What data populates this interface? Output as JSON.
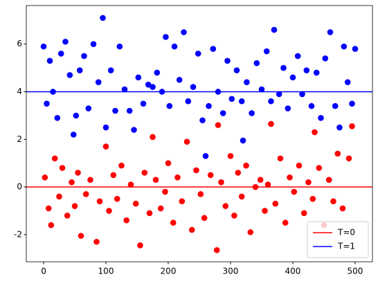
{
  "chart_data": {
    "type": "scatter",
    "series": [
      {
        "color": "#0000ff",
        "x": [
          0,
          5,
          10,
          15,
          22,
          28,
          35,
          42,
          48,
          52,
          58,
          65,
          72,
          80,
          88,
          95,
          100,
          108,
          115,
          122,
          130,
          138,
          145,
          152,
          160,
          168,
          175,
          182,
          190,
          196,
          202,
          210,
          218,
          225,
          232,
          240,
          248,
          255,
          260,
          265,
          272,
          280,
          288,
          295,
          302,
          310,
          318,
          320,
          326,
          334,
          342,
          350,
          358,
          365,
          370,
          378,
          385,
          392,
          400,
          408,
          415,
          422,
          430,
          438,
          445,
          452,
          460,
          468,
          475,
          482,
          488,
          495,
          500
        ],
        "values": [
          5.9,
          3.5,
          5.3,
          4.0,
          2.9,
          5.6,
          6.1,
          4.7,
          2.2,
          3.0,
          4.9,
          5.5,
          3.3,
          6.0,
          4.4,
          7.1,
          2.5,
          4.9,
          3.2,
          5.9,
          4.1,
          3.2,
          2.4,
          4.6,
          3.5,
          4.3,
          4.2,
          4.8,
          4.0,
          6.3,
          3.4,
          5.9,
          4.5,
          6.5,
          3.6,
          4.2,
          5.6,
          2.8,
          1.3,
          3.4,
          5.8,
          4.0,
          3.1,
          5.3,
          3.7,
          4.9,
          3.6,
          1.95,
          4.4,
          3.1,
          5.2,
          4.1,
          5.7,
          3.6,
          6.6,
          3.9,
          5.0,
          3.3,
          4.6,
          5.5,
          3.9,
          4.9,
          3.4,
          4.8,
          2.9,
          5.4,
          6.5,
          3.4,
          2.5,
          5.9,
          4.4,
          3.5,
          5.8
        ]
      },
      {
        "color": "#ff0000",
        "x": [
          2,
          8,
          12,
          18,
          25,
          30,
          38,
          45,
          50,
          55,
          60,
          68,
          75,
          85,
          90,
          100,
          105,
          112,
          118,
          125,
          133,
          140,
          148,
          155,
          162,
          170,
          175,
          180,
          188,
          195,
          200,
          208,
          215,
          222,
          230,
          238,
          245,
          252,
          258,
          268,
          278,
          280,
          285,
          292,
          300,
          306,
          312,
          318,
          325,
          332,
          340,
          348,
          355,
          360,
          365,
          372,
          380,
          388,
          395,
          402,
          410,
          418,
          425,
          432,
          435,
          442,
          450,
          458,
          465,
          472,
          480,
          490,
          495
        ],
        "values": [
          0.4,
          -0.9,
          -1.6,
          1.2,
          -0.4,
          0.8,
          -1.2,
          0.2,
          -0.8,
          0.6,
          -2.05,
          -0.3,
          0.3,
          -2.3,
          -0.6,
          1.7,
          -1.0,
          0.5,
          -0.5,
          0.9,
          -1.4,
          0.1,
          -0.7,
          -2.45,
          0.6,
          -1.1,
          2.1,
          0.3,
          -0.9,
          -0.2,
          1.0,
          -1.5,
          0.4,
          -0.6,
          1.9,
          -1.8,
          0.7,
          -0.3,
          -1.3,
          0.5,
          -2.65,
          2.6,
          0.2,
          -0.8,
          1.3,
          -1.2,
          0.6,
          -0.4,
          0.9,
          -1.9,
          0.0,
          0.3,
          -1.0,
          0.1,
          2.65,
          -0.7,
          1.2,
          -1.5,
          0.4,
          -0.2,
          0.9,
          -1.1,
          0.2,
          -0.5,
          2.3,
          0.8,
          -1.6,
          0.3,
          -0.6,
          1.4,
          -0.9,
          1.2,
          2.55
        ]
      }
    ],
    "hlines": [
      {
        "name": "T=0",
        "y": 0,
        "color": "#ff0000"
      },
      {
        "name": "T=1",
        "y": 4,
        "color": "#0000ff"
      }
    ],
    "xlim": [
      -27.8,
      527.8
    ],
    "xticks": [
      0,
      100,
      200,
      300,
      400,
      500
    ],
    "ylim": [
      -3.14,
      7.62
    ],
    "yticks": [
      -2,
      0,
      2,
      4,
      6
    ],
    "legend": "lower right"
  }
}
